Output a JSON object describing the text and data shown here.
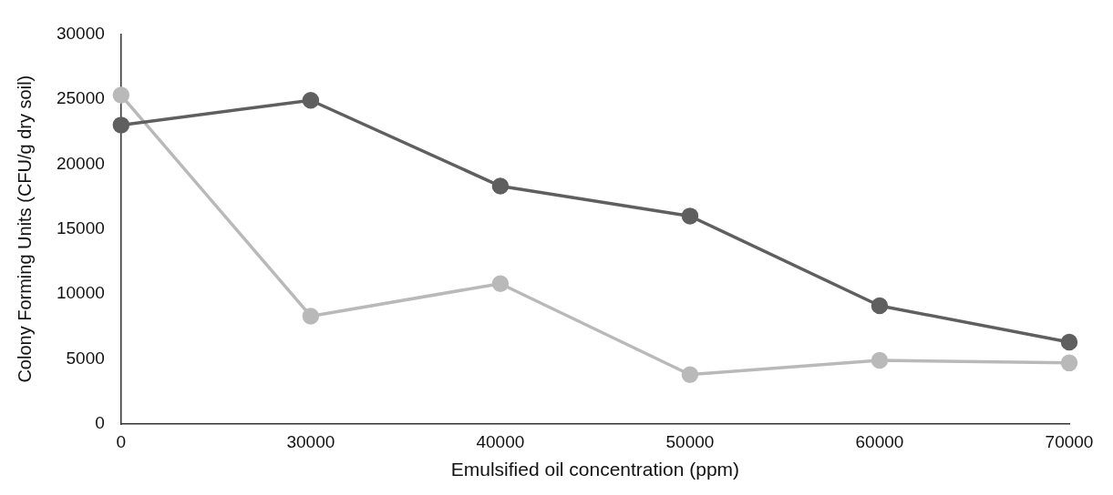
{
  "chart_data": {
    "type": "line",
    "xlabel": "Emulsified oil concentration (ppm)",
    "ylabel": "Colony Forming Units (CFU/g dry soil)",
    "categories": [
      "0",
      "30000",
      "40000",
      "50000",
      "60000",
      "70000"
    ],
    "series": [
      {
        "color": "#5f5f5f",
        "values": [
          23000,
          24900,
          18300,
          16000,
          9100,
          6300
        ]
      },
      {
        "color": "#b9b9b9",
        "values": [
          25300,
          8300,
          10800,
          3800,
          4900,
          4700
        ]
      }
    ],
    "ylim": [
      0,
      30000
    ],
    "yticks": [
      0,
      5000,
      10000,
      15000,
      20000,
      25000,
      30000
    ],
    "grid": false,
    "legend": false,
    "marker": "circle",
    "line_style": "solid"
  }
}
